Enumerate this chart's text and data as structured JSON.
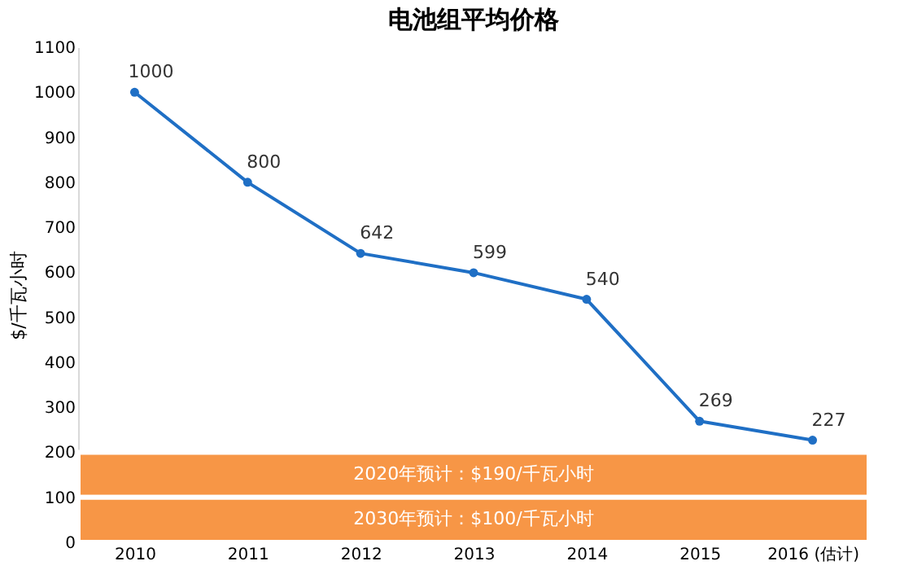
{
  "chart_data": {
    "type": "line",
    "title": "电池组平均价格",
    "ylabel": "$/千瓦小时",
    "categories": [
      "2010",
      "2011",
      "2012",
      "2013",
      "2014",
      "2015",
      "2016 (估计)"
    ],
    "series": [
      {
        "color": "#1f6fc5",
        "values": [
          1000,
          800,
          642,
          599,
          540,
          269,
          227
        ]
      }
    ],
    "ylim": [
      0,
      1100
    ],
    "yticks": [
      0,
      100,
      200,
      300,
      400,
      500,
      600,
      700,
      800,
      900,
      1000,
      1100
    ],
    "bands": [
      {
        "axis": "y",
        "from": 100,
        "to": 200,
        "label": "2020年预计：$190/千瓦小时",
        "color": "#f79646"
      },
      {
        "axis": "y",
        "from": 0,
        "to": 100,
        "label": "2030年预计：$100/千瓦小时",
        "color": "#f79646"
      }
    ],
    "data_labels": true,
    "marker": "circle",
    "grid": false
  }
}
